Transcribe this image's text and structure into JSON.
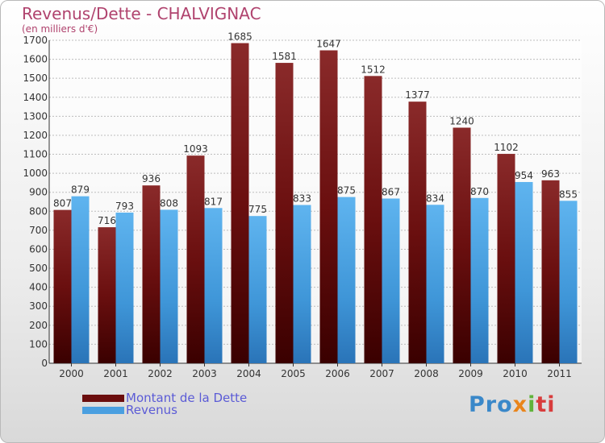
{
  "chart_data": {
    "type": "bar",
    "title": "Revenus/Dette - CHALVIGNAC",
    "subtitle": "(en milliers d'€)",
    "categories": [
      "2000",
      "2001",
      "2002",
      "2003",
      "2004",
      "2005",
      "2006",
      "2007",
      "2008",
      "2009",
      "2010",
      "2011"
    ],
    "series": [
      {
        "name": "Montant de la Dette",
        "color": "#7a1212",
        "values": [
          807,
          716,
          936,
          1093,
          1685,
          1581,
          1647,
          1512,
          1377,
          1240,
          1102,
          963
        ]
      },
      {
        "name": "Revenus",
        "color": "#4a9fe0",
        "values": [
          879,
          793,
          808,
          817,
          775,
          833,
          875,
          867,
          834,
          870,
          954,
          855
        ]
      }
    ],
    "ylim": [
      0,
      1700
    ],
    "yticks": [
      0,
      100,
      200,
      300,
      400,
      500,
      600,
      700,
      800,
      900,
      1000,
      1100,
      1200,
      1300,
      1400,
      1500,
      1600,
      1700
    ],
    "grid": true,
    "legend_position": "bottom-left"
  },
  "logo": {
    "part1": "Pro",
    "part2": "x",
    "part3": "i",
    "part4": "ti"
  }
}
